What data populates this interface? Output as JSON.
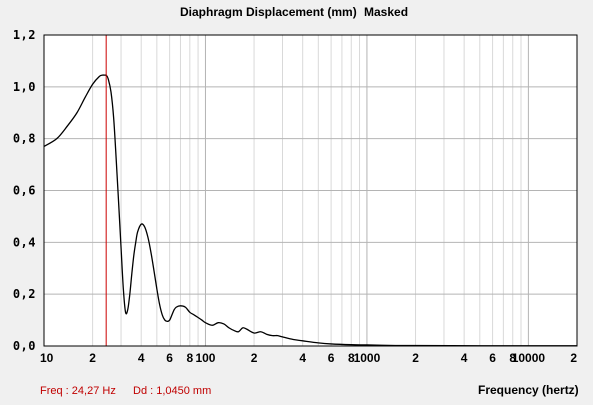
{
  "chart_data": {
    "type": "line",
    "title": "Diaphragm Displacement (mm)",
    "title_suffix": "Masked",
    "xlabel": "Frequency (hertz)",
    "ylabel": "",
    "x_scale": "log",
    "xlim": [
      10,
      20000
    ],
    "ylim": [
      0,
      1.2
    ],
    "grid": true,
    "y_ticks": [
      "0,0",
      "0,2",
      "0,4",
      "0,6",
      "0,8",
      "1,0",
      "1,2"
    ],
    "x_ticks": [
      {
        "value": 10,
        "label": "10"
      },
      {
        "value": 20,
        "label": "2"
      },
      {
        "value": 40,
        "label": "4"
      },
      {
        "value": 60,
        "label": "6"
      },
      {
        "value": 80,
        "label": "8"
      },
      {
        "value": 100,
        "label": "100"
      },
      {
        "value": 200,
        "label": "2"
      },
      {
        "value": 400,
        "label": "4"
      },
      {
        "value": 600,
        "label": "6"
      },
      {
        "value": 800,
        "label": "8"
      },
      {
        "value": 1000,
        "label": "1000"
      },
      {
        "value": 2000,
        "label": "2"
      },
      {
        "value": 4000,
        "label": "4"
      },
      {
        "value": 6000,
        "label": "6"
      },
      {
        "value": 8000,
        "label": "8"
      },
      {
        "value": 10000,
        "label": "10000"
      },
      {
        "value": 20000,
        "label": "2"
      }
    ],
    "cursor": {
      "x": 24.27,
      "y": 1.045,
      "color": "#cc0000"
    },
    "readout": {
      "freq": "Freq : 24,27 Hz",
      "dd": "Dd : 1,0450 mm"
    },
    "series": [
      {
        "color": "#000000",
        "x": [
          10,
          12,
          14,
          16,
          18,
          20,
          22,
          23,
          24,
          24.3,
          25,
          26,
          27,
          28,
          29,
          30,
          31,
          32,
          33,
          34,
          35,
          36,
          37,
          38,
          40,
          42,
          44,
          46,
          48,
          50,
          52,
          54,
          56,
          58,
          60,
          62,
          64,
          66,
          70,
          75,
          80,
          85,
          90,
          95,
          100,
          110,
          120,
          130,
          140,
          150,
          160,
          170,
          180,
          200,
          220,
          240,
          260,
          280,
          300,
          350,
          400,
          500,
          600,
          800,
          1000,
          1500,
          2000,
          5000,
          10000,
          20000
        ],
        "y": [
          0.77,
          0.8,
          0.85,
          0.9,
          0.96,
          1.01,
          1.04,
          1.045,
          1.045,
          1.045,
          1.03,
          0.98,
          0.88,
          0.72,
          0.55,
          0.38,
          0.22,
          0.13,
          0.14,
          0.2,
          0.28,
          0.35,
          0.4,
          0.44,
          0.47,
          0.46,
          0.42,
          0.36,
          0.29,
          0.22,
          0.16,
          0.12,
          0.1,
          0.095,
          0.1,
          0.12,
          0.14,
          0.15,
          0.155,
          0.15,
          0.13,
          0.12,
          0.11,
          0.1,
          0.09,
          0.08,
          0.09,
          0.085,
          0.07,
          0.06,
          0.055,
          0.07,
          0.065,
          0.05,
          0.055,
          0.045,
          0.04,
          0.04,
          0.035,
          0.025,
          0.02,
          0.012,
          0.008,
          0.005,
          0.004,
          0.002,
          0.002,
          0.001,
          0.001,
          0.001
        ]
      }
    ]
  }
}
